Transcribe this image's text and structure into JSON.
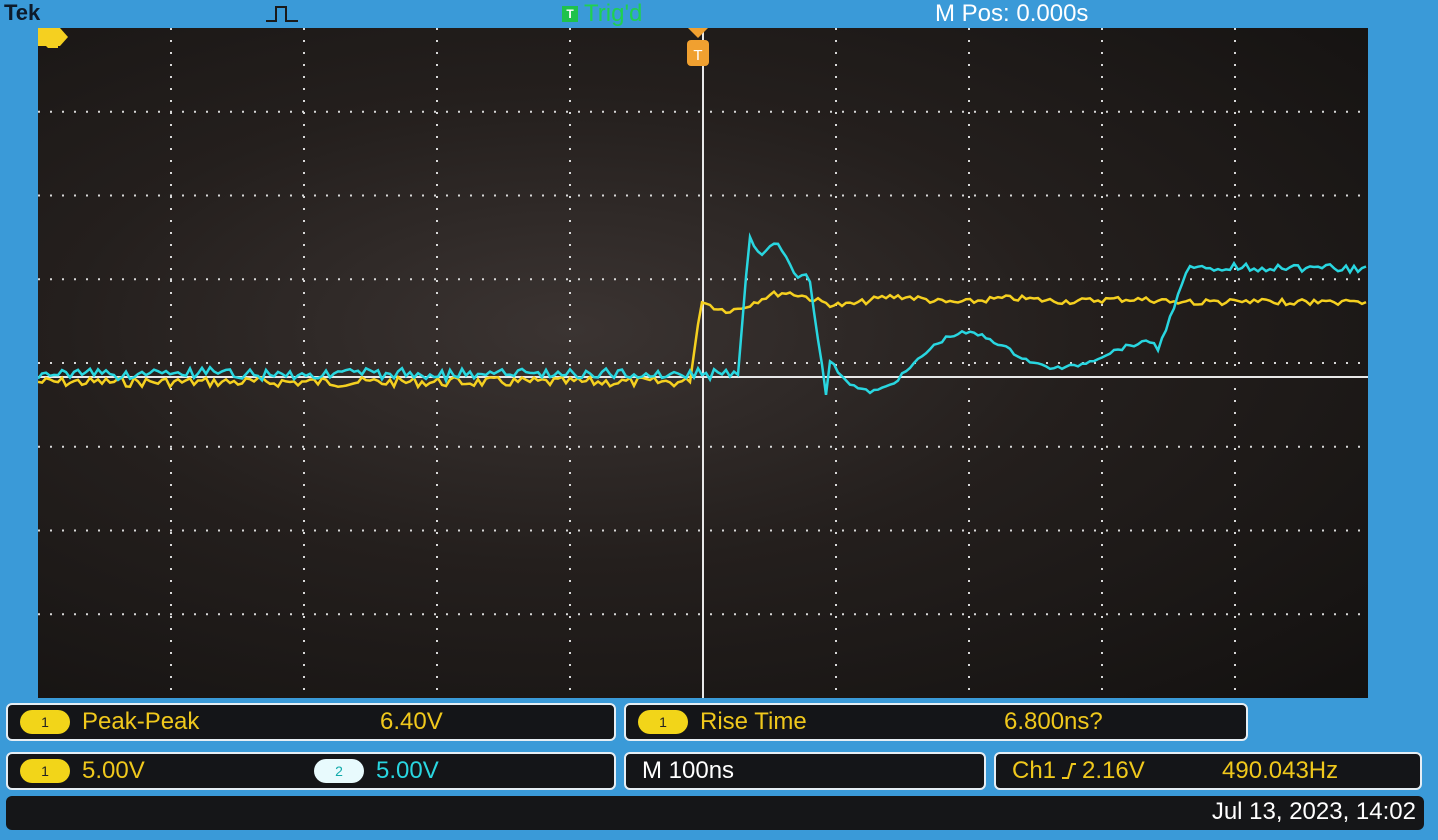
{
  "header": {
    "brand": "Tek",
    "pulse_icon": "rising-pulse-icon",
    "trigger_icon_letter": "T",
    "trigger_status": "Trig'd",
    "m_pos": "M Pos: 0.000s"
  },
  "markers": {
    "ch1_ground": "1",
    "trigger_position": "T"
  },
  "measurements": [
    {
      "channel": "1",
      "name": "Peak-Peak",
      "value": "6.40V"
    },
    {
      "channel": "1",
      "name": "Rise Time",
      "value": "6.800ns?"
    }
  ],
  "status": {
    "ch1_chip": "1",
    "ch1_scale": "5.00V",
    "ch2_chip": "2",
    "ch2_scale": "5.00V",
    "timebase": "M 100ns",
    "trigger_source": "Ch1",
    "trigger_slope_icon": "rising-edge-icon",
    "trigger_level": "2.16V",
    "frequency": "490.043Hz"
  },
  "datetime": "Jul 13, 2023, 14:02",
  "colors": {
    "ch1": "#f5d020",
    "ch2": "#29d6e0",
    "grid": "#d8d8d8",
    "bezel": "#3a9ad8"
  }
}
